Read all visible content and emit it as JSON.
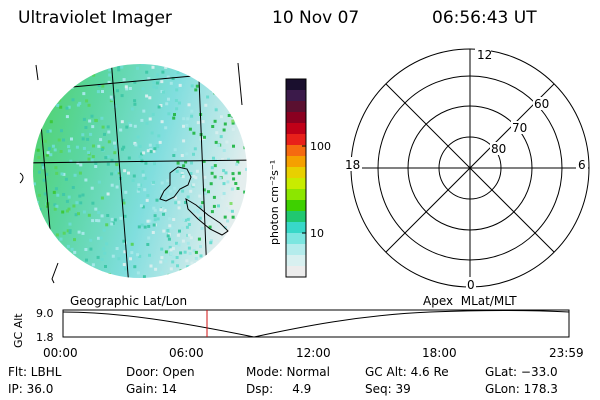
{
  "header": {
    "instrument": "Ultraviolet Imager",
    "date": "10 Nov 07",
    "time": "06:56:43 UT"
  },
  "colorbar": {
    "unit_label": "photon cm⁻²s⁻¹",
    "ticks": [
      "100",
      "10"
    ],
    "colors": [
      "#1a0f2e",
      "#3b1a4a",
      "#5a1030",
      "#8a0020",
      "#c00018",
      "#e8201a",
      "#f56a10",
      "#f5a000",
      "#e8d000",
      "#c8ec00",
      "#8ce600",
      "#3ed000",
      "#20c870",
      "#38d8c8",
      "#7ce6e0",
      "#b4ecec",
      "#d8f0f0",
      "#ececec"
    ]
  },
  "left_map": {
    "label": "Geographic Lat/Lon"
  },
  "right_polar": {
    "label": "Apex  MLat/MLT",
    "mlt_labels": {
      "top": "12",
      "left": "18",
      "right": "6",
      "bottom": "0"
    },
    "lat_labels": [
      "60",
      "70",
      "80"
    ]
  },
  "altitude_plot": {
    "ylabel": "GC Alt",
    "y_ticks": [
      "9.0",
      "1.8"
    ],
    "x_ticks": [
      "00:00",
      "06:00",
      "12:00",
      "18:00",
      "23:59"
    ],
    "marker_color": "#d01010"
  },
  "metadata": {
    "filter": "Flt: LBHL",
    "door": "Door: Open",
    "mode": "Mode: Normal",
    "gc_alt": "GC Alt: 4.6 Re",
    "glat": "GLat: −33.0",
    "ip": "IP: 36.0",
    "gain": "Gain: 14",
    "dsp": "Dsp:     4.9",
    "seq": "Seq: 39",
    "glon": "GLon: 178.3"
  }
}
